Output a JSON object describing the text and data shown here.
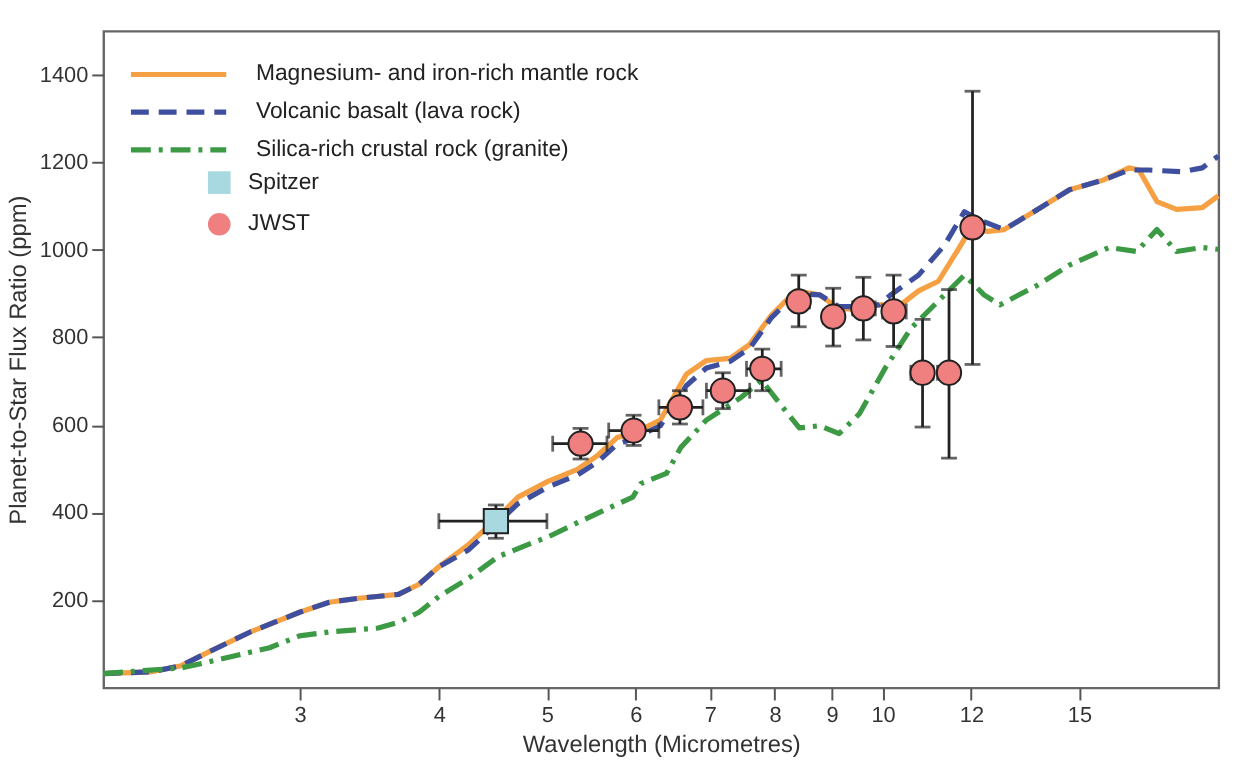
{
  "chart_data": {
    "type": "line",
    "xlabel": "Wavelength (Micrometres)",
    "ylabel": "Planet-to-Star Flux Ratio (ppm)",
    "log": "x",
    "xlim": [
      2,
      20
    ],
    "xticks": [
      3,
      4,
      5,
      6,
      7,
      8,
      9,
      10,
      12,
      15
    ],
    "ylim": [
      0,
      1500
    ],
    "yticks": [
      200,
      400,
      600,
      800,
      1000,
      1200,
      1400
    ],
    "grid": false,
    "legend": "top left",
    "series": [
      {
        "name": "Magnesium- and iron-rich mantle rock",
        "type": "line",
        "line_style": "solid",
        "color": "#f5a043",
        "x": [
          2.0,
          2.21,
          2.35,
          2.49,
          2.71,
          3.0,
          3.19,
          3.39,
          3.68,
          3.84,
          4.0,
          4.25,
          4.52,
          4.71,
          5.01,
          5.32,
          5.55,
          5.78,
          5.97,
          6.32,
          6.67,
          6.95,
          7.3,
          7.6,
          7.95,
          8.36,
          8.78,
          9.14,
          9.53,
          9.92,
          10.38,
          10.77,
          11.22,
          11.69,
          11.98,
          12.43,
          12.85,
          13.77,
          14.71,
          15.77,
          16.63,
          16.98,
          17.62,
          18.35,
          19.35,
          20.0
        ],
        "values": [
          32,
          36,
          50,
          82,
          127,
          172,
          195,
          204,
          213,
          236,
          276,
          326,
          389,
          435,
          471,
          498,
          530,
          571,
          580,
          611,
          716,
          747,
          752,
          784,
          851,
          906,
          897,
          865,
          865,
          874,
          874,
          906,
          928,
          1001,
          1046,
          1042,
          1046,
          1092,
          1137,
          1159,
          1187,
          1182,
          1110,
          1092,
          1096,
          1123
        ]
      },
      {
        "name": "Volcanic basalt (lava rock)",
        "type": "line",
        "line_style": "dashed",
        "color": "#3f4fa0",
        "x": [
          2.0,
          2.21,
          2.35,
          2.49,
          2.71,
          3.0,
          3.19,
          3.39,
          3.68,
          3.84,
          4.0,
          4.25,
          4.52,
          4.71,
          5.01,
          5.32,
          5.55,
          5.78,
          5.97,
          6.32,
          6.67,
          6.95,
          7.3,
          7.6,
          7.95,
          8.36,
          8.78,
          9.14,
          9.53,
          9.92,
          10.17,
          10.77,
          11.36,
          11.84,
          12.18,
          12.85,
          13.77,
          14.71,
          15.77,
          16.63,
          17.33,
          18.57,
          19.35,
          20.0
        ],
        "values": [
          32,
          36,
          50,
          82,
          127,
          172,
          195,
          204,
          213,
          236,
          276,
          314,
          377,
          420,
          458,
          485,
          515,
          556,
          568,
          598,
          690,
          730,
          745,
          775,
          845,
          900,
          897,
          870,
          870,
          874,
          897,
          942,
          1010,
          1087,
          1069,
          1046,
          1092,
          1137,
          1159,
          1182,
          1182,
          1178,
          1187,
          1214
        ]
      },
      {
        "name": "Silica-rich crustal rock (granite)",
        "type": "line",
        "line_style": "dashdot",
        "color": "#3c9a45",
        "x": [
          2.0,
          2.35,
          2.49,
          2.82,
          3.0,
          3.19,
          3.53,
          3.68,
          3.84,
          4.0,
          4.25,
          4.52,
          4.8,
          5.01,
          5.32,
          5.66,
          5.97,
          6.07,
          6.4,
          6.59,
          6.95,
          7.45,
          7.79,
          8.09,
          8.42,
          8.78,
          9.14,
          9.53,
          10.05,
          10.6,
          11.22,
          11.84,
          12.33,
          12.74,
          13.77,
          14.71,
          15.96,
          16.9,
          17.62,
          18.35,
          19.35,
          20.0
        ],
        "values": [
          32,
          45,
          59,
          91,
          118,
          127,
          136,
          149,
          172,
          208,
          249,
          299,
          326,
          344,
          376,
          408,
          435,
          466,
          489,
          548,
          611,
          661,
          702,
          648,
          593,
          598,
          580,
          625,
          729,
          820,
          883,
          942,
          897,
          874,
          919,
          965,
          1005,
          996,
          1046,
          996,
          1005,
          1001
        ]
      },
      {
        "name": "Spitzer",
        "type": "scatter",
        "marker": "square",
        "color": "#a8d8e0",
        "x": [
          4.5
        ],
        "values": [
          380
        ],
        "errors": [
          [
            341,
            417
          ]
        ],
        "xerrors": [
          [
            4.0,
            5.0
          ]
        ]
      },
      {
        "name": "JWST",
        "type": "scatter",
        "marker": "circle",
        "color": "#f08080",
        "x": [
          5.36,
          5.98,
          6.58,
          7.19,
          7.8,
          8.41,
          9.03,
          9.61,
          10.23,
          10.86,
          11.47,
          12.04
        ],
        "values": [
          557,
          587,
          640,
          678,
          728,
          882,
          847,
          866,
          859,
          719,
          719,
          1051
        ],
        "errors": [
          [
            522,
            592
          ],
          [
            553,
            622
          ],
          [
            602,
            678
          ],
          [
            637,
            719
          ],
          [
            678,
            773
          ],
          [
            824,
            942
          ],
          [
            780,
            912
          ],
          [
            794,
            937
          ],
          [
            779,
            942
          ],
          [
            595,
            841
          ],
          [
            524,
            909
          ],
          [
            738,
            1362
          ]
        ],
        "xerrors": [
          [
            5.06,
            5.66
          ],
          [
            5.68,
            6.3
          ],
          [
            6.3,
            6.9
          ],
          [
            6.95,
            7.6
          ],
          [
            7.55,
            8.11
          ],
          [
            8.25,
            8.6
          ],
          [
            8.85,
            9.2
          ],
          [
            9.4,
            9.85
          ],
          [
            10.0,
            10.5
          ],
          [
            10.6,
            11.1
          ],
          [
            11.2,
            11.7
          ],
          [
            11.85,
            12.25
          ]
        ]
      }
    ]
  }
}
